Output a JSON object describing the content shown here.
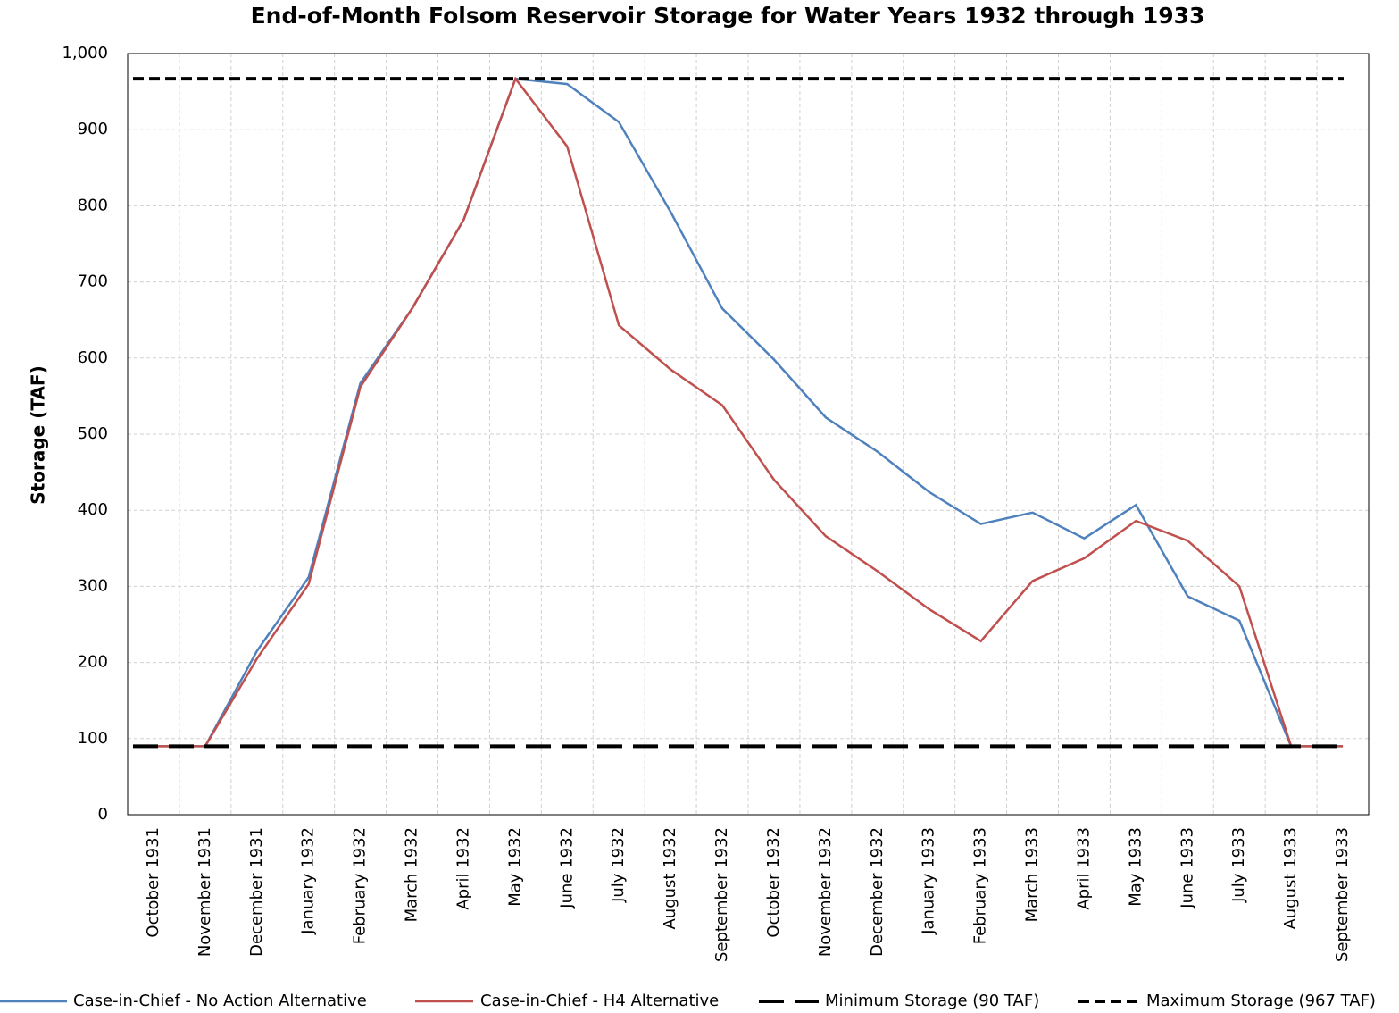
{
  "chart_data": {
    "type": "line",
    "title": "End-of-Month Folsom Reservoir Storage for Water Years 1932 through 1933",
    "y_label": "Storage (TAF)",
    "categories": [
      "October 1931",
      "November 1931",
      "December 1931",
      "January 1932",
      "February 1932",
      "March 1932",
      "April 1932",
      "May 1932",
      "June 1932",
      "July 1932",
      "August 1932",
      "September 1932",
      "October 1932",
      "November 1932",
      "December 1932",
      "January 1933",
      "February 1933",
      "March 1933",
      "April 1933",
      "May 1933",
      "June 1933",
      "July 1933",
      "August 1933",
      "September 1933"
    ],
    "series": [
      {
        "name": "Case-in-Chief - No Action Alternative",
        "color": "#4f81bd",
        "dash": "solid",
        "values": [
          90,
          90,
          215,
          312,
          567,
          665,
          782,
          967,
          960,
          910,
          792,
          665,
          598,
          522,
          477,
          424,
          382,
          397,
          363,
          407,
          287,
          255,
          90,
          90
        ]
      },
      {
        "name": "Case-in-Chief - H4 Alternative",
        "color": "#c0504d",
        "dash": "solid",
        "values": [
          90,
          90,
          205,
          303,
          562,
          665,
          782,
          967,
          878,
          643,
          585,
          538,
          440,
          366,
          320,
          270,
          228,
          307,
          337,
          386,
          360,
          300,
          90,
          90
        ]
      },
      {
        "name": "Minimum Storage (90 TAF)",
        "color": "#000000",
        "dash": "long",
        "values": [
          90,
          90,
          90,
          90,
          90,
          90,
          90,
          90,
          90,
          90,
          90,
          90,
          90,
          90,
          90,
          90,
          90,
          90,
          90,
          90,
          90,
          90,
          90,
          90
        ]
      },
      {
        "name": "Maximum Storage (967 TAF)",
        "color": "#000000",
        "dash": "short",
        "values": [
          967,
          967,
          967,
          967,
          967,
          967,
          967,
          967,
          967,
          967,
          967,
          967,
          967,
          967,
          967,
          967,
          967,
          967,
          967,
          967,
          967,
          967,
          967,
          967
        ]
      }
    ],
    "ylim": [
      0,
      1000
    ],
    "yticks": [
      0,
      100,
      200,
      300,
      400,
      500,
      600,
      700,
      800,
      900,
      {
        "value": 1000,
        "label": "1,000"
      }
    ],
    "grid": true,
    "legend": "bottom"
  }
}
